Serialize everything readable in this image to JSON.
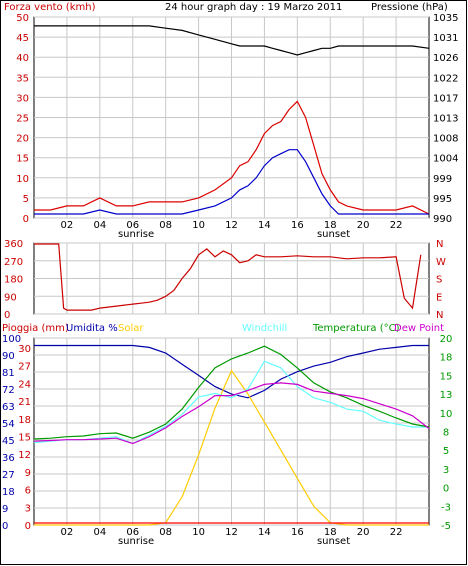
{
  "header": {
    "left_title": "Forza vento (kmh)",
    "center_title": "24 hour graph day : 19 Marzo 2011",
    "right_title": "Pressione (hPa)"
  },
  "x_labels": [
    "02",
    "04",
    "06",
    "08",
    "10",
    "12",
    "14",
    "16",
    "18",
    "20",
    "22"
  ],
  "sunrise_label": "sunrise",
  "sunset_label": "sunset",
  "colors": {
    "wind_avg": "#0000cc",
    "wind_gust": "#dd0000",
    "pressure": "#000000",
    "direction": "#cc0000",
    "humidity": "#0000aa",
    "solar": "#ffcc00",
    "windchill": "#66ffff",
    "temperature": "#009900",
    "dewpoint": "#cc00cc",
    "rain": "#ff0000",
    "left_axis": "#cc0000",
    "right_axis_bottom": "#009900"
  },
  "chart_data": [
    {
      "type": "line",
      "title": "Forza vento (kmh)",
      "y_left_ticks": [
        "50",
        "45",
        "40",
        "35",
        "30",
        "25",
        "20",
        "15",
        "10",
        "5",
        "0"
      ],
      "y_right_ticks": [
        "1035",
        "1031",
        "1026",
        "1022",
        "1017",
        "1013",
        "1008",
        "1004",
        "999",
        "995",
        "990"
      ],
      "ylim": [
        0,
        50
      ],
      "ylim_right": [
        990,
        1035
      ],
      "x_hours": [
        0,
        1,
        2,
        3,
        4,
        5,
        6,
        7,
        8,
        9,
        10,
        11,
        12,
        12.5,
        13,
        13.5,
        14,
        14.5,
        15,
        15.5,
        16,
        16.5,
        17,
        17.5,
        18,
        18.5,
        19,
        20,
        21,
        22,
        23,
        24
      ],
      "series": [
        {
          "name": "gust",
          "values": [
            2,
            2,
            3,
            3,
            5,
            3,
            3,
            4,
            4,
            4,
            5,
            7,
            10,
            13,
            14,
            17,
            21,
            23,
            24,
            27,
            29,
            25,
            18,
            11,
            7,
            4,
            3,
            2,
            2,
            2,
            3,
            1
          ]
        },
        {
          "name": "average",
          "values": [
            1,
            1,
            1,
            1,
            2,
            1,
            1,
            1,
            1,
            1,
            2,
            3,
            5,
            7,
            8,
            10,
            13,
            15,
            16,
            17,
            17,
            14,
            10,
            6,
            3,
            1,
            1,
            1,
            1,
            1,
            1,
            1
          ]
        },
        {
          "name": "pressure",
          "values": [
            1033,
            1033,
            1033,
            1033,
            1033,
            1033,
            1033,
            1033,
            1032.5,
            1032,
            1031,
            1030,
            1029,
            1028.5,
            1028.5,
            1028.5,
            1028.5,
            1028,
            1027.5,
            1027,
            1026.5,
            1027,
            1027.5,
            1028,
            1028,
            1028.5,
            1028.5,
            1028.5,
            1028.5,
            1028.5,
            1028.5,
            1028
          ]
        }
      ]
    },
    {
      "type": "line",
      "title": "",
      "y_left_ticks": [
        "360",
        "270",
        "180",
        "90",
        "0"
      ],
      "y_right_ticks": [
        "N",
        "W",
        "S",
        "E",
        "N"
      ],
      "ylim": [
        0,
        360
      ],
      "x_hours": [
        0,
        1.5,
        1.8,
        2,
        3,
        3.5,
        4,
        4.5,
        5,
        5.5,
        6,
        6.5,
        7,
        7.5,
        8,
        8.5,
        9,
        9.5,
        10,
        10.5,
        11,
        11.5,
        12,
        12.5,
        13,
        13.5,
        14,
        15,
        16,
        17,
        18,
        19,
        20,
        21,
        22,
        22.5,
        23,
        23.5
      ],
      "series": [
        {
          "name": "direction",
          "values": [
            355,
            355,
            30,
            20,
            20,
            20,
            30,
            35,
            40,
            45,
            50,
            55,
            60,
            70,
            90,
            120,
            180,
            230,
            300,
            330,
            290,
            320,
            300,
            260,
            270,
            300,
            290,
            290,
            295,
            290,
            290,
            280,
            285,
            285,
            290,
            80,
            30,
            300
          ]
        }
      ]
    },
    {
      "type": "line",
      "title": "",
      "y_left_ticks": [
        "100",
        "90",
        "81",
        "72",
        "63",
        "54",
        "45",
        "36",
        "27",
        "18",
        "9",
        "0"
      ],
      "y_left2_ticks": [
        "30",
        "27",
        "24",
        "21",
        "18",
        "15",
        "12",
        "9",
        "6",
        "3",
        "0"
      ],
      "y_right_ticks": [
        "20",
        "18",
        "15",
        "13",
        "10",
        "8",
        "5",
        "3",
        "0",
        "-3",
        "-5"
      ],
      "ylim_humidity": [
        0,
        100
      ],
      "ylim_temperature": [
        -5,
        20
      ],
      "x_hours": [
        0,
        1,
        2,
        3,
        4,
        5,
        6,
        7,
        8,
        9,
        10,
        11,
        12,
        13,
        14,
        15,
        16,
        17,
        18,
        19,
        20,
        21,
        22,
        23,
        24
      ],
      "series": [
        {
          "name": "Umidita %",
          "values": [
            96,
            96,
            96,
            96,
            96,
            96,
            96,
            95,
            92,
            86,
            80,
            74,
            70,
            68,
            72,
            78,
            82,
            85,
            87,
            90,
            92,
            94,
            95,
            96,
            96
          ]
        },
        {
          "name": "Solar",
          "values": [
            0,
            0,
            0,
            0,
            0,
            0,
            0,
            0,
            5,
            60,
            150,
            250,
            330,
            280,
            220,
            160,
            100,
            40,
            5,
            0,
            0,
            0,
            0,
            0,
            0
          ]
        },
        {
          "name": "Windchill",
          "values": [
            6.0,
            6.2,
            6.4,
            6.4,
            6.6,
            6.8,
            5.9,
            7.0,
            8.2,
            9.8,
            12.1,
            12.6,
            12.0,
            13.2,
            16.9,
            16.0,
            13.5,
            12.0,
            11.4,
            10.5,
            10.2,
            9.0,
            8.5,
            8.1,
            8.1
          ]
        },
        {
          "name": "Temperatura (°C)",
          "values": [
            6.5,
            6.6,
            6.8,
            6.9,
            7.2,
            7.3,
            6.6,
            7.4,
            8.5,
            10.5,
            13.4,
            16.0,
            17.2,
            18.0,
            18.9,
            17.8,
            16.0,
            14.0,
            12.8,
            12.0,
            11.0,
            10.2,
            9.3,
            8.5,
            8.1
          ]
        },
        {
          "name": "Dew Point",
          "values": [
            6.2,
            6.3,
            6.4,
            6.4,
            6.5,
            6.6,
            5.9,
            6.8,
            8.0,
            9.5,
            10.8,
            12.3,
            12.3,
            13.0,
            13.8,
            14.0,
            13.8,
            12.9,
            12.6,
            12.3,
            11.9,
            11.2,
            10.5,
            9.6,
            7.9
          ]
        },
        {
          "name": "Pioggia (mm)",
          "values": [
            0,
            0,
            0,
            0,
            0,
            0,
            0,
            0,
            0,
            0,
            0,
            0,
            0,
            0,
            0,
            0,
            0,
            0,
            0,
            0,
            0,
            0,
            0,
            0,
            0
          ]
        }
      ],
      "legend": [
        "Pioggia (mm)",
        "Umidita %",
        "Solar",
        "Windchill",
        "Temperatura (°C)",
        "Dew Point"
      ]
    }
  ]
}
